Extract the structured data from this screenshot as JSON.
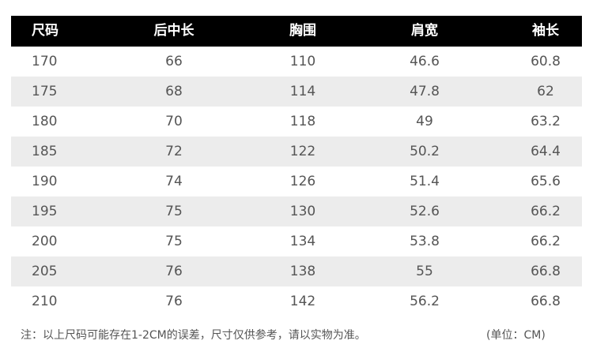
{
  "headers": [
    "尺码",
    "后中长",
    "胸围",
    "肩宽",
    "袖长"
  ],
  "rows": [
    [
      "170",
      "66",
      "110",
      "46.6",
      "60.8"
    ],
    [
      "175",
      "68",
      "114",
      "47.8",
      "62"
    ],
    [
      "180",
      "70",
      "118",
      "49",
      "63.2"
    ],
    [
      "185",
      "72",
      "122",
      "50.2",
      "64.4"
    ],
    [
      "190",
      "74",
      "126",
      "51.4",
      "65.6"
    ],
    [
      "195",
      "75",
      "130",
      "52.6",
      "66.2"
    ],
    [
      "200",
      "75",
      "134",
      "53.8",
      "66.2"
    ],
    [
      "205",
      "76",
      "138",
      "55",
      "66.8"
    ],
    [
      "210",
      "76",
      "142",
      "56.2",
      "66.8"
    ]
  ],
  "note": "注：以上尺码可能存在1-2CM的误差，尺寸仅供参考，请以实物为准。",
  "unit": "(单位：CM)",
  "colors": {
    "header_bg": "#000000",
    "stripe": "#ececec",
    "text": "#555555"
  }
}
